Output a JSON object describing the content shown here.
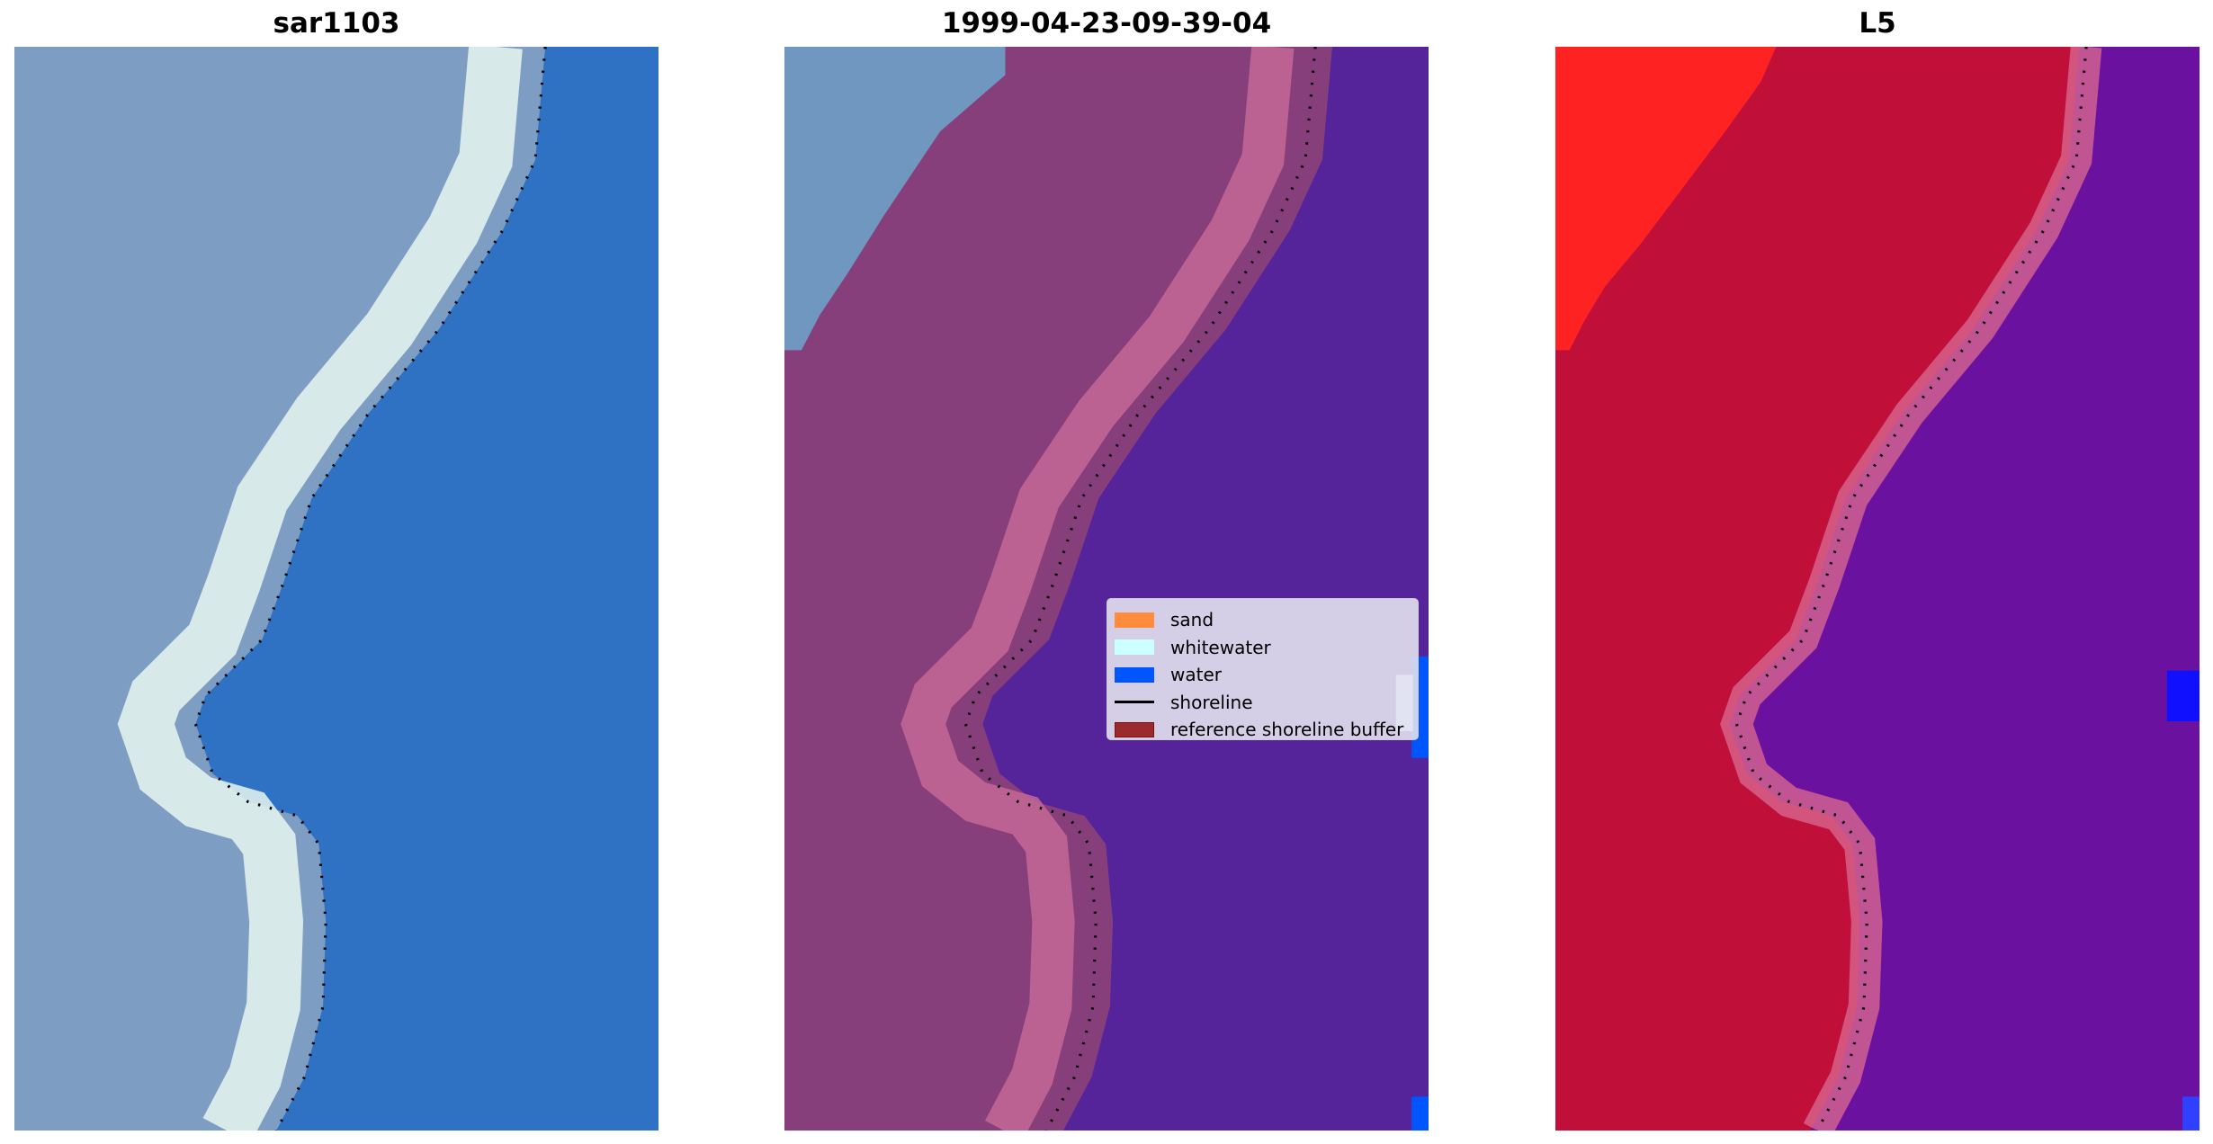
{
  "panels": [
    {
      "title": "sar1103",
      "colors": {
        "land": "#7d9ec2",
        "beach": "#e8f6f0",
        "water": "#2f72c4"
      }
    },
    {
      "title": "1999-04-23-09-39-04",
      "colors": {
        "unclassified": "#6f97c0",
        "land": "#873f7c",
        "beach": "#c46896",
        "water": "#55239a"
      }
    },
    {
      "title": "L5",
      "colors": {
        "sand_hi": "#ff2222",
        "land": "#c0103a",
        "beach": "#d7658e",
        "water": "#6a129f"
      }
    }
  ],
  "legend": {
    "items": [
      {
        "label": "sand",
        "color": "#ff8c3c",
        "kind": "patch"
      },
      {
        "label": "whitewater",
        "color": "#ccffff",
        "kind": "patch"
      },
      {
        "label": "water",
        "color": "#0055ff",
        "kind": "patch"
      },
      {
        "label": "shoreline",
        "color": "#000000",
        "kind": "line"
      },
      {
        "label": "reference shoreline buffer",
        "color": "#9b2a2e",
        "kind": "patch"
      }
    ]
  }
}
